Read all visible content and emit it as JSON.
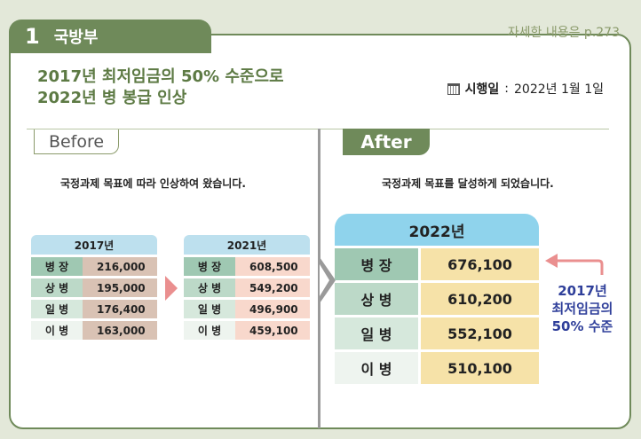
{
  "section": {
    "number": "1",
    "name": "국방부"
  },
  "reference": "자세한 내용은 p.273",
  "title": {
    "line1": "2017년 최저임금의 50% 수준으로",
    "line2": "2022년 병 봉급 인상"
  },
  "effective": {
    "label": "시행일",
    "sep": " : ",
    "date": "2022년 1월 1일",
    "icon": "calendar-icon"
  },
  "before": {
    "tab": "Before",
    "caption": "국정과제 목표에 따라 인상하여 왔습니다.",
    "tables": [
      {
        "year": "2017년",
        "rows": [
          {
            "rank": "병 장",
            "value": "216,000"
          },
          {
            "rank": "상 병",
            "value": "195,000"
          },
          {
            "rank": "일 병",
            "value": "176,400"
          },
          {
            "rank": "이 병",
            "value": "163,000"
          }
        ]
      },
      {
        "year": "2021년",
        "rows": [
          {
            "rank": "병 장",
            "value": "608,500"
          },
          {
            "rank": "상 병",
            "value": "549,200"
          },
          {
            "rank": "일 병",
            "value": "496,900"
          },
          {
            "rank": "이 병",
            "value": "459,100"
          }
        ]
      }
    ]
  },
  "after": {
    "tab": "After",
    "caption": "국정과제 목표를 달성하게 되었습니다.",
    "table": {
      "year": "2022년",
      "rows": [
        {
          "rank": "병 장",
          "value": "676,100"
        },
        {
          "rank": "상 병",
          "value": "610,200"
        },
        {
          "rank": "일 병",
          "value": "552,100"
        },
        {
          "rank": "이 병",
          "value": "510,100"
        }
      ]
    },
    "note": {
      "line1": "2017년",
      "line2": "최저임금의",
      "line3": "50% 수준"
    }
  },
  "colors": {
    "accent_green": "#6f8a5a",
    "note_blue": "#2f3f9a",
    "arrow_pink": "#ea8f8f"
  }
}
